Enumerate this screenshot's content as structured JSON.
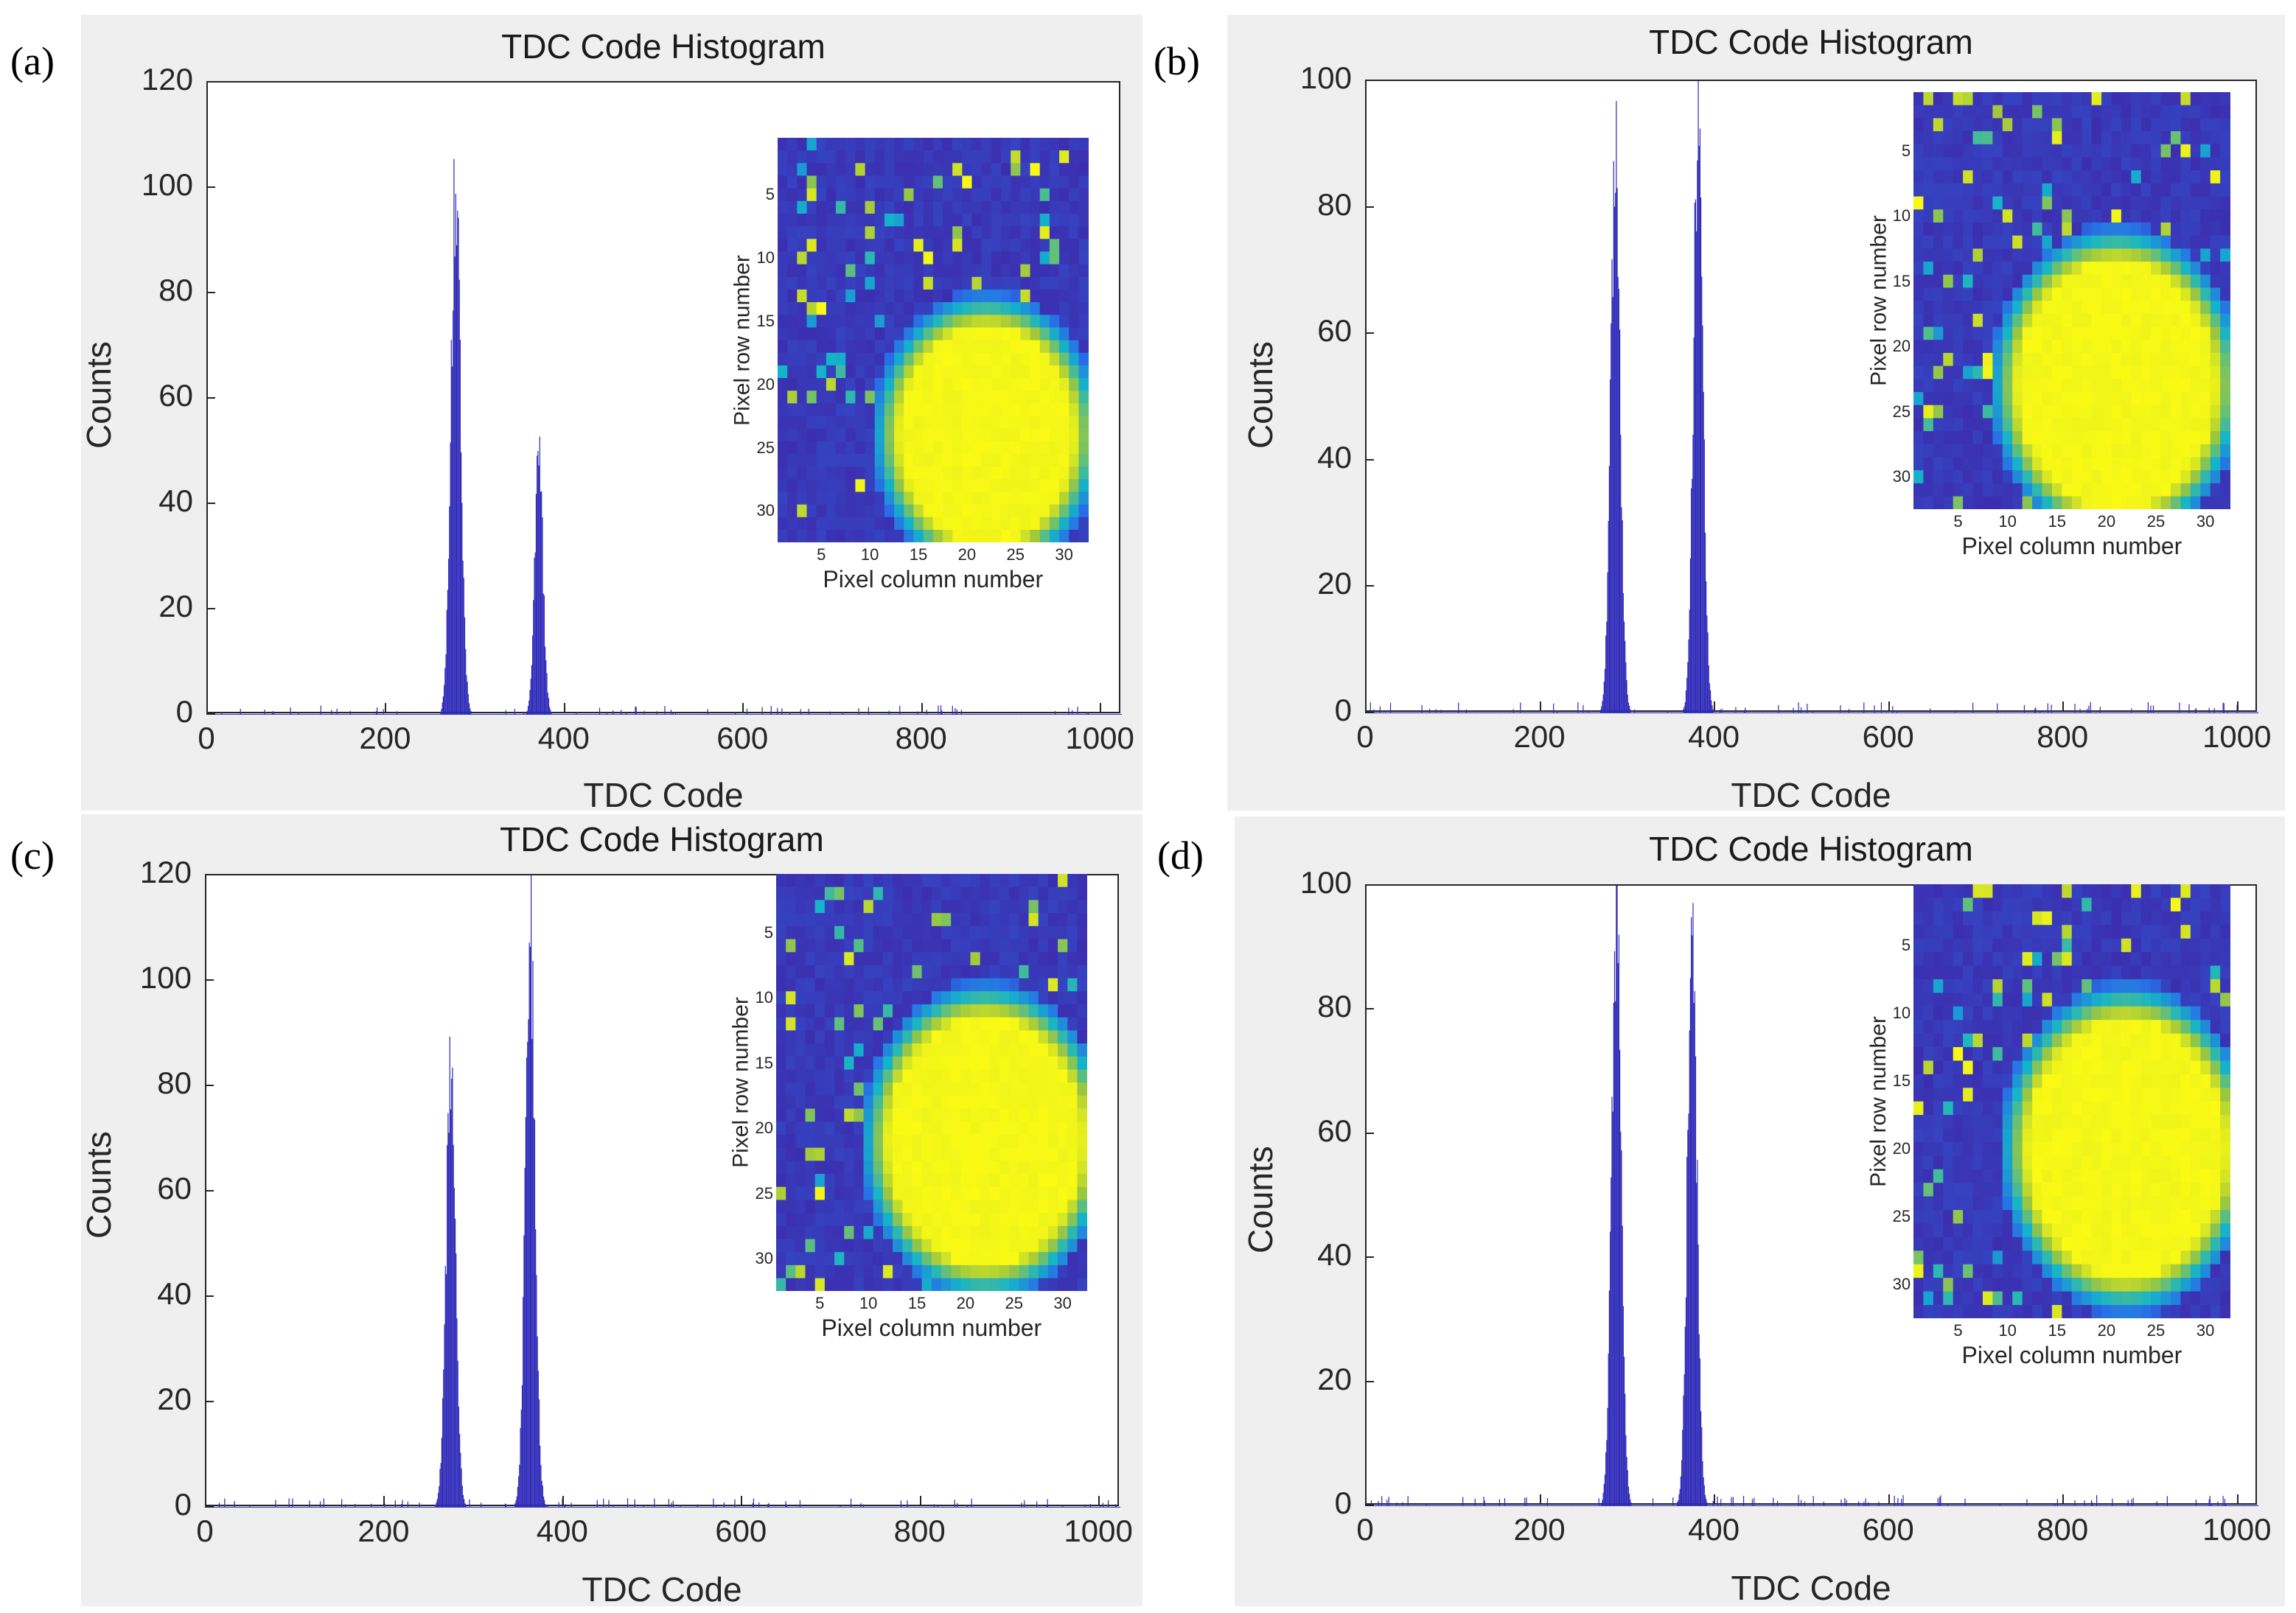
{
  "colors": {
    "bar": "#2e2ab8",
    "panel_bg": "#efefef",
    "axis": "#262626"
  },
  "chart_data": [
    {
      "id": "a",
      "panel_label": "(a)",
      "type": "bar",
      "title": "TDC Code Histogram",
      "xlabel": "TDC Code",
      "ylabel": "Counts",
      "xlim": [
        0,
        1023
      ],
      "ylim": [
        0,
        120
      ],
      "xticks": [
        "0",
        "200",
        "400",
        "600",
        "800",
        "1000"
      ],
      "yticks": [
        "0",
        "20",
        "40",
        "60",
        "80",
        "100",
        "120"
      ],
      "peaks": [
        {
          "center": 277,
          "height": 101,
          "width": 14
        },
        {
          "center": 370,
          "height": 48,
          "width": 12
        }
      ],
      "inset": {
        "xlabel": "Pixel column number",
        "ylabel": "Pixel row number",
        "xticks": [
          "5",
          "10",
          "15",
          "20",
          "25",
          "30"
        ],
        "yticks": [
          "5",
          "10",
          "15",
          "20",
          "25",
          "30"
        ],
        "spot_center": [
          22,
          24
        ],
        "spot_radius": 9
      }
    },
    {
      "id": "b",
      "panel_label": "(b)",
      "type": "bar",
      "title": "TDC Code Histogram",
      "xlabel": "TDC Code",
      "ylabel": "Counts",
      "xlim": [
        0,
        1023
      ],
      "ylim": [
        0,
        100
      ],
      "xticks": [
        "0",
        "200",
        "400",
        "600",
        "800",
        "1000"
      ],
      "yticks": [
        "0",
        "20",
        "40",
        "60",
        "80",
        "100"
      ],
      "peaks": [
        {
          "center": 285,
          "height": 87,
          "width": 14
        },
        {
          "center": 380,
          "height": 94,
          "width": 14
        }
      ],
      "inset": {
        "xlabel": "Pixel column number",
        "ylabel": "Pixel row number",
        "xticks": [
          "5",
          "10",
          "15",
          "20",
          "25",
          "30"
        ],
        "yticks": [
          "5",
          "10",
          "15",
          "20",
          "25",
          "30"
        ],
        "spot_center": [
          21,
          23
        ],
        "spot_radius": 10
      }
    },
    {
      "id": "c",
      "panel_label": "(c)",
      "type": "bar",
      "title": "TDC Code Histogram",
      "xlabel": "TDC Code",
      "ylabel": "Counts",
      "xlim": [
        0,
        1023
      ],
      "ylim": [
        0,
        120
      ],
      "xticks": [
        "0",
        "200",
        "400",
        "600",
        "800",
        "1000"
      ],
      "yticks": [
        "0",
        "20",
        "40",
        "60",
        "80",
        "100",
        "120"
      ],
      "peaks": [
        {
          "center": 273,
          "height": 80,
          "width": 14
        },
        {
          "center": 362,
          "height": 107,
          "width": 14
        }
      ],
      "inset": {
        "xlabel": "Pixel column number",
        "ylabel": "Pixel row number",
        "xticks": [
          "5",
          "10",
          "15",
          "20",
          "25",
          "30"
        ],
        "yticks": [
          "5",
          "10",
          "15",
          "20",
          "25",
          "30"
        ],
        "spot_center": [
          22,
          21
        ],
        "spot_radius": 10
      }
    },
    {
      "id": "d",
      "panel_label": "(d)",
      "type": "bar",
      "title": "TDC Code Histogram",
      "xlabel": "TDC Code",
      "ylabel": "Counts",
      "xlim": [
        0,
        1023
      ],
      "ylim": [
        0,
        100
      ],
      "xticks": [
        "0",
        "200",
        "400",
        "600",
        "800",
        "1000"
      ],
      "yticks": [
        "0",
        "20",
        "40",
        "60",
        "80",
        "100"
      ],
      "peaks": [
        {
          "center": 286,
          "height": 94,
          "width": 14
        },
        {
          "center": 373,
          "height": 92,
          "width": 14
        }
      ],
      "inset": {
        "xlabel": "Pixel column number",
        "ylabel": "Pixel row number",
        "xticks": [
          "5",
          "10",
          "15",
          "20",
          "25",
          "30"
        ],
        "yticks": [
          "5",
          "10",
          "15",
          "20",
          "25",
          "30"
        ],
        "spot_center": [
          22,
          20
        ],
        "spot_radius": 10
      }
    }
  ]
}
